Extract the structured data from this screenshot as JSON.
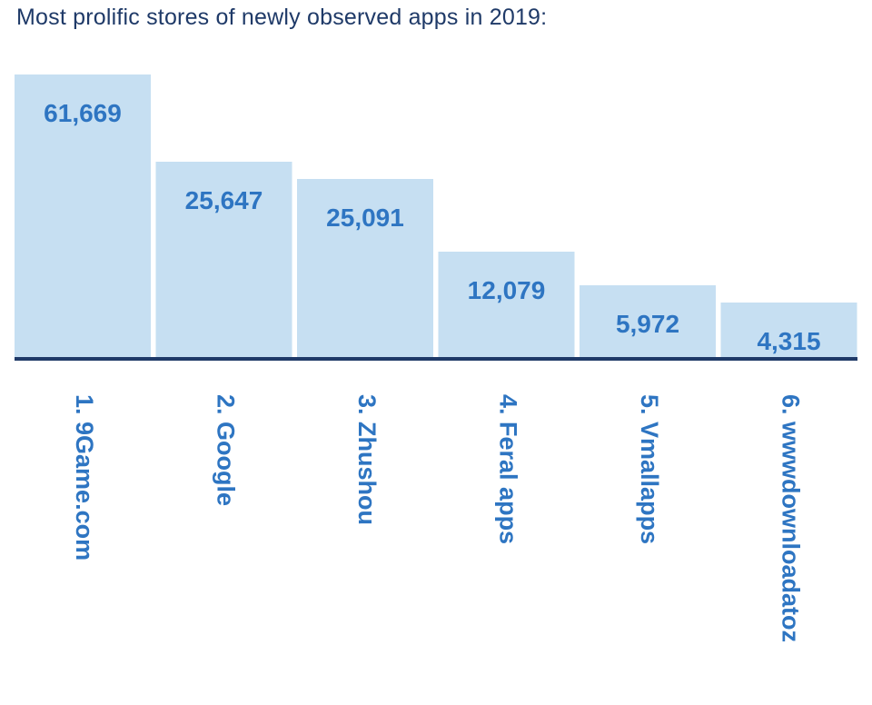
{
  "title": "Most prolific stores of newly observed apps in 2019:",
  "colors": {
    "bar": "#c6dff2",
    "value_text": "#2e75c2",
    "label_text": "#2e75c2",
    "baseline": "#1f3a68",
    "title": "#1f3a68"
  },
  "chart_data": {
    "type": "bar",
    "title": "Most prolific stores of newly observed apps in 2019:",
    "categories": [
      "1. 9Game.com",
      "2. Google",
      "3. Zhushou",
      "4. Feral apps",
      "5. Vmallapps",
      "6. wwwdownloadatoz"
    ],
    "values": [
      61669,
      25647,
      25091,
      12079,
      5972,
      4315
    ],
    "value_labels": [
      "61,669",
      "25,647",
      "25,091",
      "12,079",
      "5,972",
      "4,315"
    ],
    "xlabel": "",
    "ylabel": "",
    "grid": false,
    "legend": "none",
    "axis_scale": "non-linear (bar heights not proportional to values)",
    "y_axis_shown": false
  }
}
